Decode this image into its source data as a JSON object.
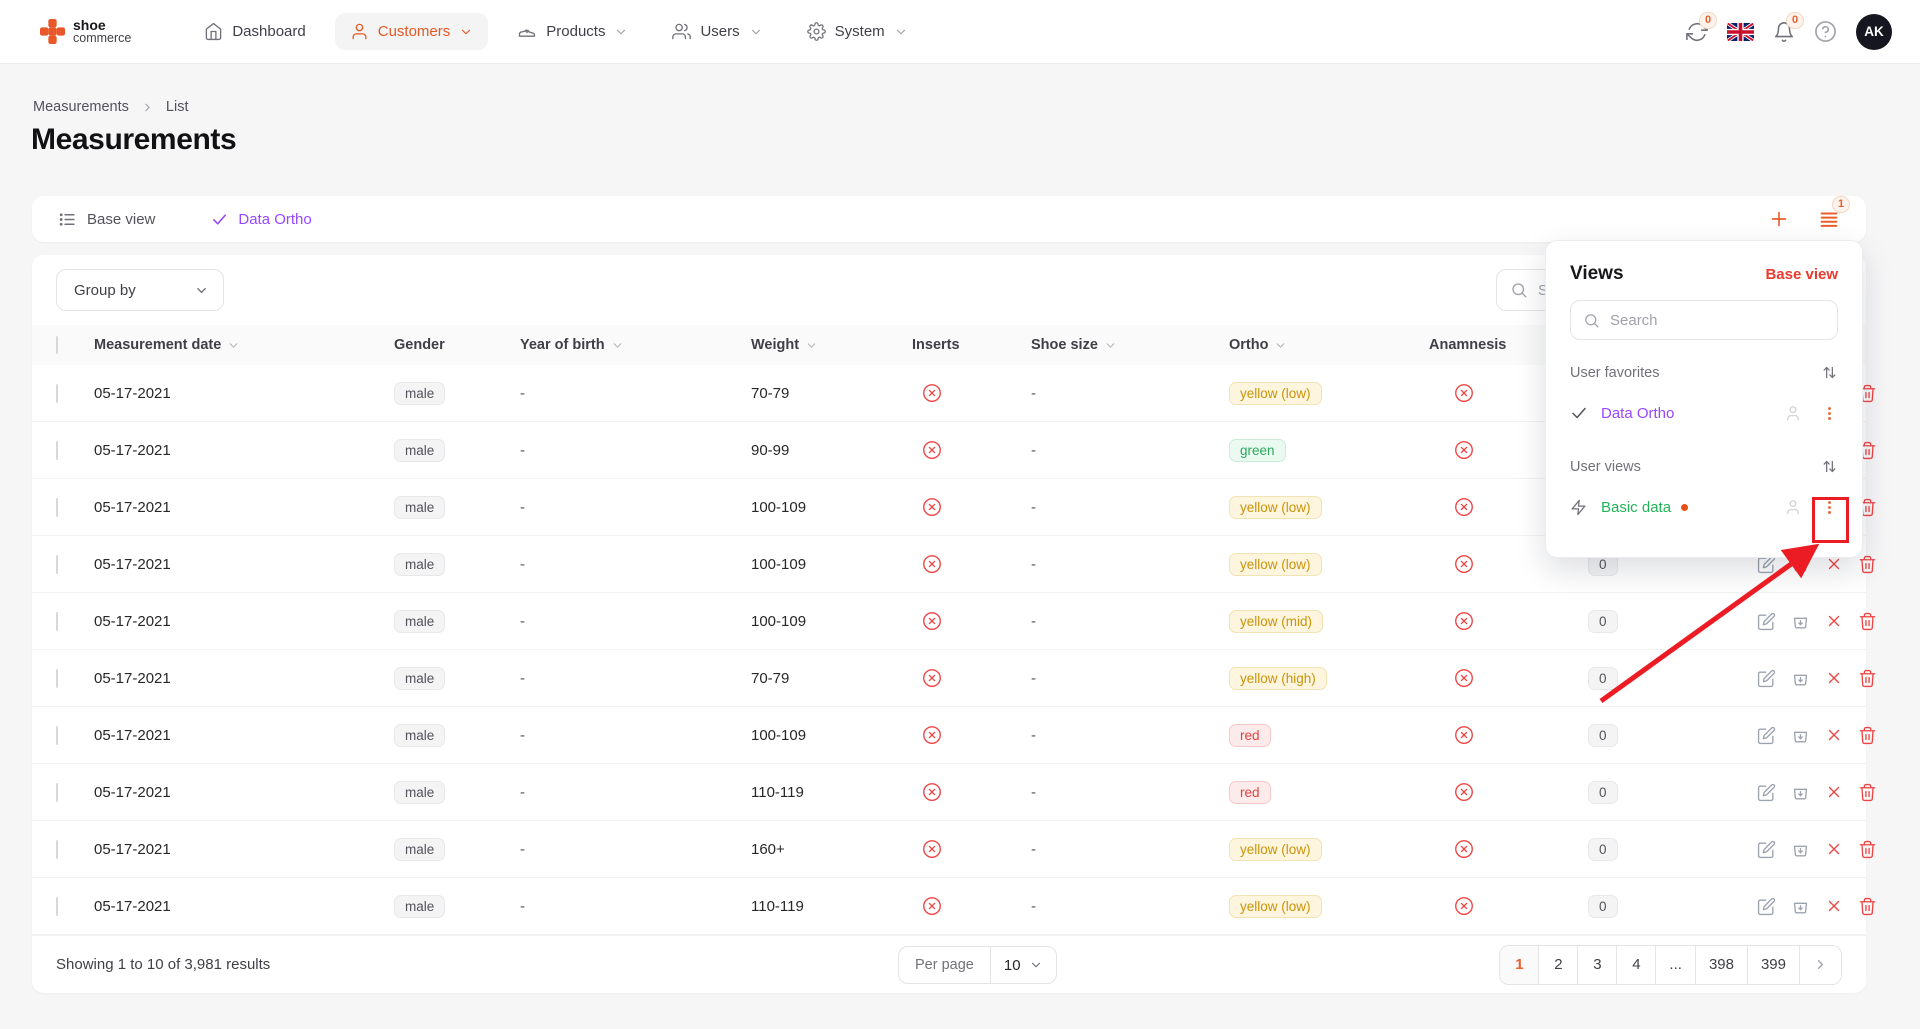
{
  "topbar": {
    "logo": {
      "line1": "shoe",
      "line2": "commerce"
    },
    "nav": [
      {
        "label": "Dashboard"
      },
      {
        "label": "Customers"
      },
      {
        "label": "Products"
      },
      {
        "label": "Users"
      },
      {
        "label": "System"
      }
    ],
    "sync_badge": "0",
    "bell_badge": "0",
    "avatar_initials": "AK"
  },
  "breadcrumb": {
    "root": "Measurements",
    "current": "List"
  },
  "page_title": "Measurements",
  "view_bar": {
    "base_view": "Base view",
    "active_view": "Data Ortho",
    "views_badge": "1"
  },
  "filter_bar": {
    "group_by": "Group by",
    "search_placeholder": "Search"
  },
  "table": {
    "headers": [
      {
        "label": "Measurement date",
        "sortable": true
      },
      {
        "label": "Gender",
        "sortable": false
      },
      {
        "label": "Year of birth",
        "sortable": true
      },
      {
        "label": "Weight",
        "sortable": true
      },
      {
        "label": "Inserts",
        "sortable": false
      },
      {
        "label": "Shoe size",
        "sortable": true
      },
      {
        "label": "Ortho",
        "sortable": true
      },
      {
        "label": "Anamnesis",
        "sortable": false
      }
    ],
    "rows": [
      {
        "date": "05-17-2021",
        "gender": "male",
        "year_of_birth": "-",
        "weight": "70-79",
        "shoe_size": "-",
        "ortho": "yellow (low)",
        "ortho_variant": "yellow",
        "count": "0"
      },
      {
        "date": "05-17-2021",
        "gender": "male",
        "year_of_birth": "-",
        "weight": "90-99",
        "shoe_size": "-",
        "ortho": "green",
        "ortho_variant": "green",
        "count": "0"
      },
      {
        "date": "05-17-2021",
        "gender": "male",
        "year_of_birth": "-",
        "weight": "100-109",
        "shoe_size": "-",
        "ortho": "yellow (low)",
        "ortho_variant": "yellow",
        "count": "0"
      },
      {
        "date": "05-17-2021",
        "gender": "male",
        "year_of_birth": "-",
        "weight": "100-109",
        "shoe_size": "-",
        "ortho": "yellow (low)",
        "ortho_variant": "yellow",
        "count": "0"
      },
      {
        "date": "05-17-2021",
        "gender": "male",
        "year_of_birth": "-",
        "weight": "100-109",
        "shoe_size": "-",
        "ortho": "yellow (mid)",
        "ortho_variant": "yellow",
        "count": "0"
      },
      {
        "date": "05-17-2021",
        "gender": "male",
        "year_of_birth": "-",
        "weight": "70-79",
        "shoe_size": "-",
        "ortho": "yellow (high)",
        "ortho_variant": "yellow",
        "count": "0"
      },
      {
        "date": "05-17-2021",
        "gender": "male",
        "year_of_birth": "-",
        "weight": "100-109",
        "shoe_size": "-",
        "ortho": "red",
        "ortho_variant": "red",
        "count": "0"
      },
      {
        "date": "05-17-2021",
        "gender": "male",
        "year_of_birth": "-",
        "weight": "110-119",
        "shoe_size": "-",
        "ortho": "red",
        "ortho_variant": "red",
        "count": "0"
      },
      {
        "date": "05-17-2021",
        "gender": "male",
        "year_of_birth": "-",
        "weight": "160+",
        "shoe_size": "-",
        "ortho": "yellow (low)",
        "ortho_variant": "yellow",
        "count": "0"
      },
      {
        "date": "05-17-2021",
        "gender": "male",
        "year_of_birth": "-",
        "weight": "110-119",
        "shoe_size": "-",
        "ortho": "yellow (low)",
        "ortho_variant": "yellow",
        "count": "0"
      }
    ]
  },
  "footer": {
    "showing": "Showing 1 to 10 of 3,981 results",
    "per_page_label": "Per page",
    "per_page_value": "10",
    "pages": [
      "1",
      "2",
      "3",
      "4",
      "...",
      "398",
      "399"
    ],
    "active_page": "1"
  },
  "views_popup": {
    "title": "Views",
    "base_view_link": "Base view",
    "search_placeholder": "Search",
    "sections": [
      {
        "label": "User favorites",
        "items": [
          {
            "name": "Data Ortho"
          }
        ]
      },
      {
        "label": "User views",
        "items": [
          {
            "name": "Basic data"
          }
        ]
      }
    ]
  },
  "colors": {
    "accent_orange": "#e8602c",
    "purple": "#9747ff",
    "green": "#22b358",
    "danger_red": "#ef4444",
    "link_red": "#e93a2e",
    "annotation_red": "#ec1c24"
  }
}
